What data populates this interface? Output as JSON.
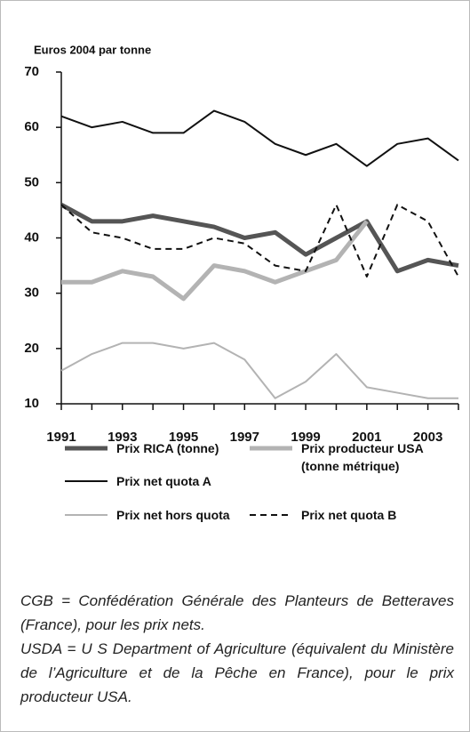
{
  "chart_data": {
    "type": "line",
    "y_label": "Euros 2004 par tonne",
    "x": [
      1991,
      1992,
      1993,
      1994,
      1995,
      1996,
      1997,
      1998,
      1999,
      2000,
      2001,
      2002,
      2003,
      2004
    ],
    "xlim": [
      1991,
      2004
    ],
    "xticks": [
      1991,
      1993,
      1995,
      1997,
      1999,
      2001,
      2003
    ],
    "ylim": [
      10,
      70
    ],
    "yticks": [
      10,
      20,
      30,
      40,
      50,
      60,
      70
    ],
    "series": [
      {
        "name": "Prix RICA (tonne)",
        "color": "#555555",
        "width": 5,
        "dashed": false,
        "values": [
          46,
          43,
          43,
          44,
          43,
          42,
          40,
          41,
          37,
          40,
          43,
          34,
          36,
          35
        ]
      },
      {
        "name": "Prix producteur USA (tonne métrique)",
        "color": "#b3b3b3",
        "width": 5,
        "dashed": false,
        "values": [
          32,
          32,
          34,
          33,
          29,
          35,
          34,
          32,
          34,
          36,
          43,
          null,
          null,
          null
        ]
      },
      {
        "name": "Prix net quota A",
        "color": "#111111",
        "width": 2,
        "dashed": false,
        "values": [
          62,
          60,
          61,
          59,
          59,
          63,
          61,
          57,
          55,
          57,
          53,
          57,
          58,
          54
        ]
      },
      {
        "name": "Prix net hors quota",
        "color": "#b3b3b3",
        "width": 2,
        "dashed": false,
        "values": [
          16,
          19,
          21,
          21,
          20,
          21,
          18,
          11,
          14,
          19,
          13,
          12,
          11,
          11
        ]
      },
      {
        "name": "Prix net  quota B",
        "color": "#111111",
        "width": 2,
        "dashed": true,
        "values": [
          46,
          41,
          40,
          38,
          38,
          40,
          39,
          35,
          34,
          46,
          33,
          46,
          43,
          33
        ]
      }
    ],
    "notes": [
      "CGB = Confédération Générale des Planteurs de Betteraves (France), pour les prix nets.",
      "USDA = U S Department of Agriculture (équivalent du Ministère de l’Agriculture et de la Pêche en France), pour le prix producteur USA."
    ]
  }
}
